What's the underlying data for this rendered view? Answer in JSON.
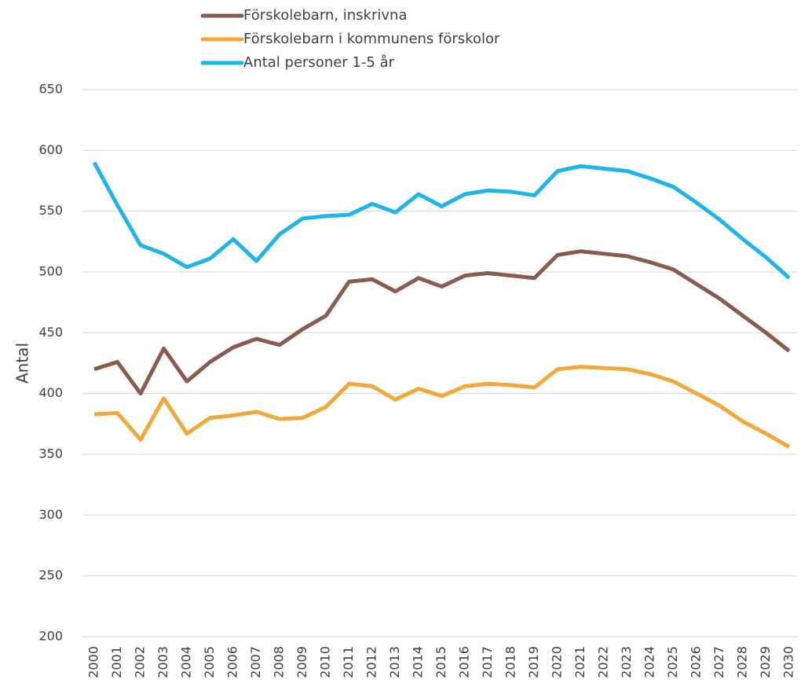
{
  "chart_data": {
    "type": "line",
    "y_label": "Antal",
    "categories": [
      "2000",
      "2001",
      "2002",
      "2003",
      "2004",
      "2005",
      "2006",
      "2007",
      "2008",
      "2009",
      "2010",
      "2011",
      "2012",
      "2013",
      "2014",
      "2015",
      "2016",
      "2017",
      "2018",
      "2019",
      "2020",
      "2021",
      "2022",
      "2023",
      "2024",
      "2025",
      "2026",
      "2027",
      "2028",
      "2029",
      "2030"
    ],
    "series": [
      {
        "name": "Förskolebarn, inskrivna",
        "color": "#8a5c50",
        "values": [
          420,
          426,
          400,
          437,
          410,
          426,
          438,
          445,
          440,
          453,
          464,
          492,
          494,
          484,
          495,
          488,
          497,
          499,
          497,
          495,
          514,
          517,
          515,
          513,
          508,
          502,
          490,
          478,
          464,
          450,
          435
        ]
      },
      {
        "name": "Förskolebarn i kommunens förskolor",
        "color": "#f2a93b",
        "values": [
          383,
          384,
          362,
          396,
          367,
          380,
          382,
          385,
          379,
          380,
          389,
          408,
          406,
          395,
          404,
          398,
          406,
          408,
          407,
          405,
          420,
          422,
          421,
          420,
          416,
          410,
          400,
          390,
          377,
          367,
          356
        ]
      },
      {
        "name": "Antal personer 1-5 år",
        "color": "#1fb5e9",
        "values": [
          590,
          555,
          522,
          515,
          504,
          511,
          527,
          509,
          531,
          544,
          546,
          547,
          556,
          549,
          564,
          554,
          564,
          567,
          566,
          563,
          583,
          587,
          585,
          583,
          577,
          570,
          557,
          543,
          527,
          512,
          495
        ]
      }
    ],
    "ylim": [
      200,
      650
    ],
    "yticks": [
      200,
      250,
      300,
      350,
      400,
      450,
      500,
      550,
      600,
      650
    ],
    "grid": true,
    "legend": "top"
  }
}
